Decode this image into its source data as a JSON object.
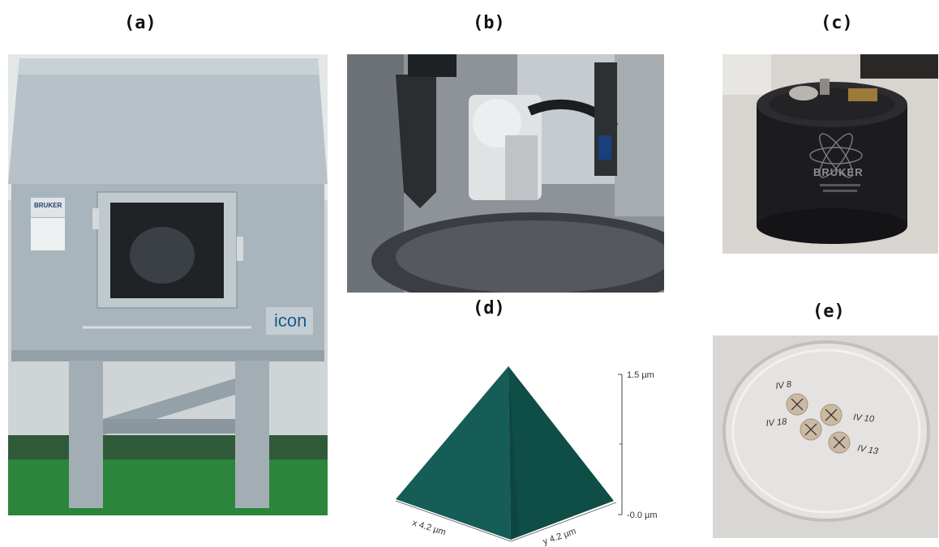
{
  "panels": {
    "a": {
      "label": "(a)",
      "brand": "BRUKER",
      "product": "icon"
    },
    "b": {
      "label": "(b)"
    },
    "c": {
      "label": "(c)",
      "brand": "BRUKER"
    },
    "d": {
      "label": "(d)",
      "z_top": "1.5 µm",
      "z_bottom": "-0.0 µm",
      "x_axis": "x 4.2 µm",
      "y_axis": "y 4.2 µm",
      "pyramid_color": "#155d56"
    },
    "e": {
      "label": "(e)",
      "sample_labels": [
        "IV 8",
        "IV 10",
        "IV 18",
        "IV 13"
      ]
    }
  }
}
